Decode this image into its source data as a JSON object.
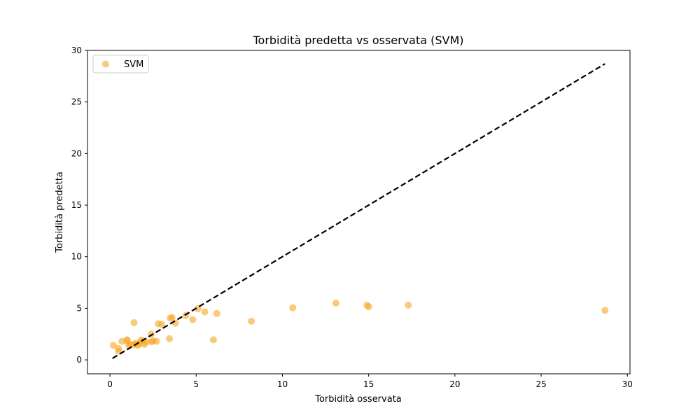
{
  "chart_data": {
    "type": "scatter",
    "title": "Torbidità predetta vs osservata (SVM)",
    "xlabel": "Torbidità osservata",
    "ylabel": "Torbidità predetta",
    "xlim": [
      -1.3,
      30.15
    ],
    "ylim": [
      -1.35,
      30.0
    ],
    "xticks": [
      0,
      5,
      10,
      15,
      20,
      25,
      30
    ],
    "yticks": [
      0,
      5,
      10,
      15,
      20,
      25,
      30
    ],
    "grid": false,
    "legend": {
      "position": "top-left"
    },
    "colors": {
      "points": "#f5a623",
      "reference_line": "#000000"
    },
    "series": [
      {
        "name": "SVM",
        "points": [
          [
            0.2,
            1.4
          ],
          [
            0.5,
            0.85
          ],
          [
            0.5,
            1.1
          ],
          [
            0.7,
            1.8
          ],
          [
            1.0,
            1.85
          ],
          [
            1.0,
            1.95
          ],
          [
            1.1,
            1.4
          ],
          [
            1.2,
            1.5
          ],
          [
            1.4,
            3.6
          ],
          [
            1.4,
            1.5
          ],
          [
            1.5,
            1.6
          ],
          [
            1.6,
            1.4
          ],
          [
            1.7,
            1.55
          ],
          [
            1.8,
            1.9
          ],
          [
            1.9,
            1.85
          ],
          [
            2.0,
            1.5
          ],
          [
            2.1,
            1.75
          ],
          [
            2.4,
            1.75
          ],
          [
            2.4,
            2.5
          ],
          [
            2.5,
            1.85
          ],
          [
            2.7,
            1.8
          ],
          [
            2.8,
            3.5
          ],
          [
            3.0,
            3.45
          ],
          [
            3.45,
            2.05
          ],
          [
            3.5,
            4.05
          ],
          [
            3.6,
            4.1
          ],
          [
            3.8,
            3.55
          ],
          [
            4.4,
            4.3
          ],
          [
            4.8,
            3.9
          ],
          [
            5.1,
            4.95
          ],
          [
            5.5,
            4.65
          ],
          [
            6.0,
            1.95
          ],
          [
            6.2,
            4.5
          ],
          [
            8.2,
            3.75
          ],
          [
            10.6,
            5.05
          ],
          [
            13.1,
            5.5
          ],
          [
            14.9,
            5.3
          ],
          [
            15.0,
            5.15
          ],
          [
            17.3,
            5.3
          ],
          [
            28.7,
            4.8
          ]
        ]
      }
    ],
    "reference_line": {
      "style": "dashed",
      "from": [
        0.15,
        0.15
      ],
      "to": [
        28.7,
        28.7
      ]
    }
  }
}
